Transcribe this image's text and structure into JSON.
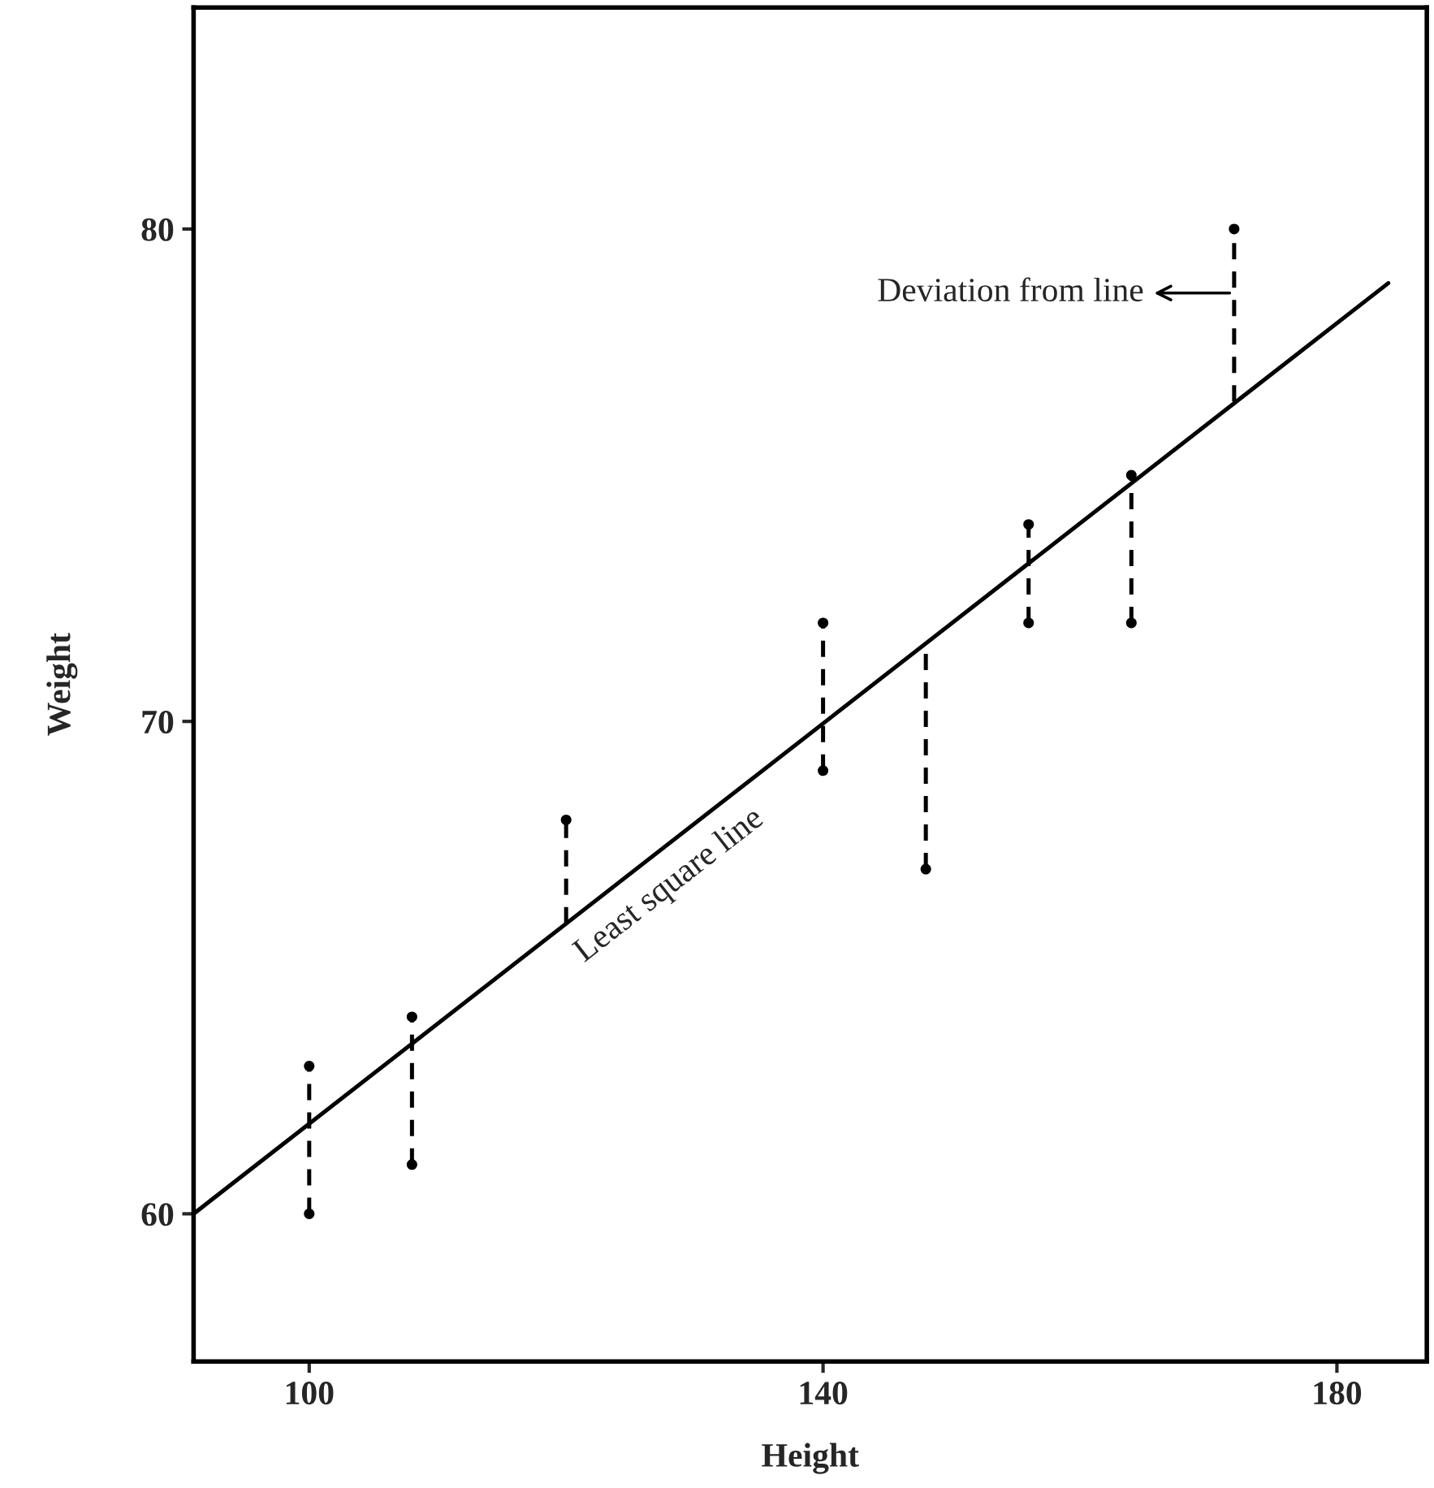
{
  "chart_data": {
    "type": "scatter",
    "xlabel": "Height",
    "ylabel": "Weight",
    "xlim": [
      91,
      187
    ],
    "ylim": [
      57,
      84.5
    ],
    "xticks": [
      100,
      140,
      180
    ],
    "yticks": [
      60,
      70,
      80
    ],
    "grid": false,
    "legend": false,
    "marker": "circle",
    "series": [
      {
        "color": "#000000",
        "x": [
          100,
          100,
          108,
          108,
          120,
          140,
          140,
          148,
          156,
          156,
          164,
          164,
          172
        ],
        "values": [
          63,
          60,
          64,
          61,
          68,
          72,
          69,
          67,
          74,
          72,
          75,
          72,
          80
        ]
      },
      {
        "type": "line",
        "color": "#000000",
        "line_style": "solid",
        "marker": "none",
        "x": [
          91,
          184
        ],
        "values": [
          60,
          78.9
        ]
      },
      {
        "type": "line",
        "color": "#000000",
        "line_style": "dashed",
        "marker": "none",
        "x": [
          100,
          100
        ],
        "values": [
          60,
          63
        ]
      },
      {
        "type": "line",
        "color": "#000000",
        "line_style": "dashed",
        "marker": "none",
        "x": [
          108,
          108
        ],
        "values": [
          61,
          64
        ]
      },
      {
        "type": "line",
        "color": "#000000",
        "line_style": "dashed",
        "marker": "none",
        "x": [
          120,
          120
        ],
        "values": [
          65.9,
          68
        ]
      },
      {
        "type": "line",
        "color": "#000000",
        "line_style": "dashed",
        "marker": "none",
        "x": [
          140,
          140
        ],
        "values": [
          69,
          72
        ]
      },
      {
        "type": "line",
        "color": "#000000",
        "line_style": "dashed",
        "marker": "none",
        "x": [
          148,
          148
        ],
        "values": [
          67,
          71.6
        ]
      },
      {
        "type": "line",
        "color": "#000000",
        "line_style": "dashed",
        "marker": "none",
        "x": [
          156,
          156
        ],
        "values": [
          72,
          74
        ]
      },
      {
        "type": "line",
        "color": "#000000",
        "line_style": "dashed",
        "marker": "none",
        "x": [
          164,
          164
        ],
        "values": [
          72,
          75
        ]
      },
      {
        "type": "line",
        "color": "#000000",
        "line_style": "dashed",
        "marker": "none",
        "x": [
          172,
          172
        ],
        "values": [
          76.5,
          80
        ]
      }
    ],
    "annotations": [
      {
        "text": "Deviation from line",
        "x": 172,
        "y": 78.7
      },
      {
        "text": "Least square line",
        "x": 127,
        "y": 67.3
      }
    ]
  }
}
